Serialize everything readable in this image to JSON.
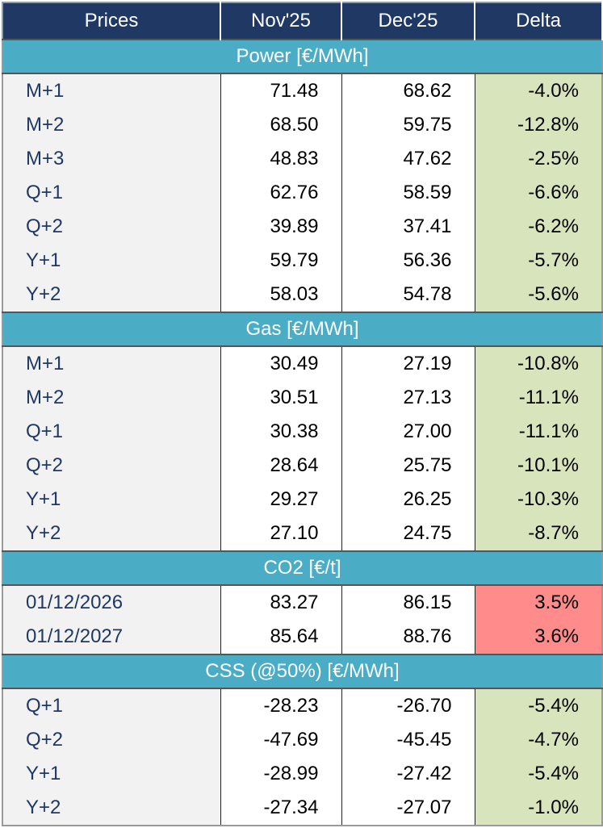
{
  "header": [
    "Prices",
    "Nov'25",
    "Dec'25",
    "Delta"
  ],
  "sections": [
    {
      "title": "Power [€/MWh]",
      "rows": [
        [
          "M+1",
          "71.48",
          "68.62",
          "-4.0%"
        ],
        [
          "M+2",
          "68.50",
          "59.75",
          "-12.8%"
        ],
        [
          "M+3",
          "48.83",
          "47.62",
          "-2.5%"
        ],
        [
          "Q+1",
          "62.76",
          "58.59",
          "-6.6%"
        ],
        [
          "Q+2",
          "39.89",
          "37.41",
          "-6.2%"
        ],
        [
          "Y+1",
          "59.79",
          "56.36",
          "-5.7%"
        ],
        [
          "Y+2",
          "58.03",
          "54.78",
          "-5.6%"
        ]
      ]
    },
    {
      "title": "Gas [€/MWh]",
      "rows": [
        [
          "M+1",
          "30.49",
          "27.19",
          "-10.8%"
        ],
        [
          "M+2",
          "30.51",
          "27.13",
          "-11.1%"
        ],
        [
          "Q+1",
          "30.38",
          "27.00",
          "-11.1%"
        ],
        [
          "Q+2",
          "28.64",
          "25.75",
          "-10.1%"
        ],
        [
          "Y+1",
          "29.27",
          "26.25",
          "-10.3%"
        ],
        [
          "Y+2",
          "27.10",
          "24.75",
          "-8.7%"
        ]
      ]
    },
    {
      "title": "CO2 [€/t]",
      "rows": [
        [
          "01/12/2026",
          "83.27",
          "86.15",
          "3.5%"
        ],
        [
          "01/12/2027",
          "85.64",
          "88.76",
          "3.6%"
        ]
      ]
    },
    {
      "title": "CSS (@50%) [€/MWh]",
      "rows": [
        [
          "Q+1",
          "-28.23",
          "-26.70",
          "-5.4%"
        ],
        [
          "Q+2",
          "-47.69",
          "-45.45",
          "-4.7%"
        ],
        [
          "Y+1",
          "-28.99",
          "-27.42",
          "-5.4%"
        ],
        [
          "Y+2",
          "-27.34",
          "-27.07",
          "-1.0%"
        ]
      ]
    }
  ]
}
